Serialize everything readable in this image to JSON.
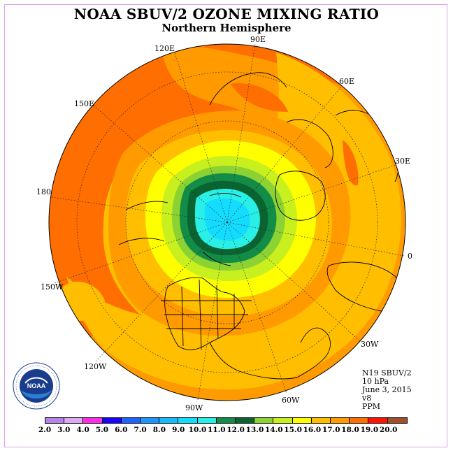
{
  "title": "NOAA SBUV/2 OZONE MIXING RATIO",
  "subtitle": "Northern Hemisphere",
  "longitude_labels": {
    "lon_90e": "90E",
    "lon_60e": "60E",
    "lon_30e": "30E",
    "lon_0": "0",
    "lon_30w": "30W",
    "lon_60w": "60W",
    "lon_90w": "90W",
    "lon_120w": "120W",
    "lon_150w": "150W",
    "lon_180": "180",
    "lon_150e": "150E",
    "lon_120e": "120E"
  },
  "info": {
    "instrument": "N19 SBUV/2",
    "level": "10 hPa",
    "date": "June 3, 2015",
    "version": "v8",
    "units": "PPM"
  },
  "logo": {
    "text": "NOAA",
    "ring_text": "NATIONAL OCEANIC AND ATMOSPHERIC ADMINISTRATION · U.S. DEPARTMENT OF COMMERCE"
  },
  "colorbar": {
    "labels": [
      "2.0",
      "3.0",
      "4.0",
      "5.0",
      "6.0",
      "7.0",
      "8.0",
      "9.0",
      "10.0",
      "11.0",
      "12.0",
      "13.0",
      "14.0",
      "15.0",
      "16.0",
      "17.0",
      "18.0",
      "19.0",
      "20.0"
    ],
    "colors": [
      "#b482e8",
      "#dcaaf5",
      "#ff2ee6",
      "#1a00ff",
      "#1e64ff",
      "#1e96ff",
      "#19b9ff",
      "#14dcff",
      "#28f0e6",
      "#128c46",
      "#0a6432",
      "#8cd232",
      "#c8f01e",
      "#ffff00",
      "#ffbe00",
      "#ff9b00",
      "#ff6e00",
      "#ff1400",
      "#a05028"
    ]
  },
  "map_colors": {
    "ocean_orange_dark": "#ff6e00",
    "orange": "#ff9b00",
    "amber": "#ffbe00",
    "yellow": "#ffff00",
    "light_green": "#c8f01e",
    "green": "#8cd232",
    "dark_green": "#128c46",
    "darkest_green": "#0a6432",
    "aqua": "#28f0e6",
    "cyan": "#14dcff"
  }
}
